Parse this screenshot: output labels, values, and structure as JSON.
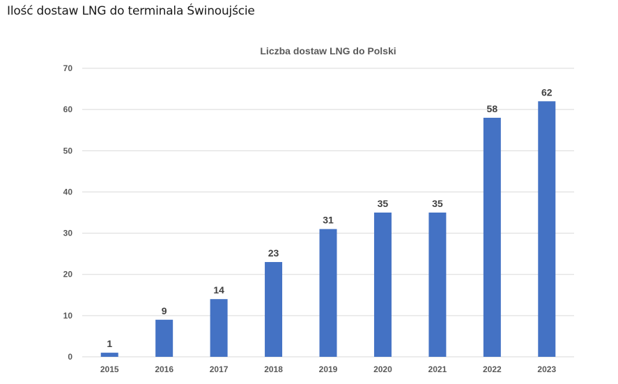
{
  "page": {
    "heading": "Ilość dostaw LNG do terminala Świnoujście"
  },
  "chart_data": {
    "type": "bar",
    "title": "Liczba dostaw LNG do Polski",
    "xlabel": "",
    "ylabel": "",
    "categories": [
      "2015",
      "2016",
      "2017",
      "2018",
      "2019",
      "2020",
      "2021",
      "2022",
      "2023"
    ],
    "values": [
      1,
      9,
      14,
      23,
      31,
      35,
      35,
      58,
      62
    ],
    "ylim": [
      0,
      70
    ],
    "yticks": [
      0,
      10,
      20,
      30,
      40,
      50,
      60,
      70
    ],
    "grid": true,
    "legend": "none",
    "data_labels": true,
    "colors": {
      "bar": "#4472c4",
      "grid": "#d9d9d9",
      "text": "#595959"
    }
  }
}
